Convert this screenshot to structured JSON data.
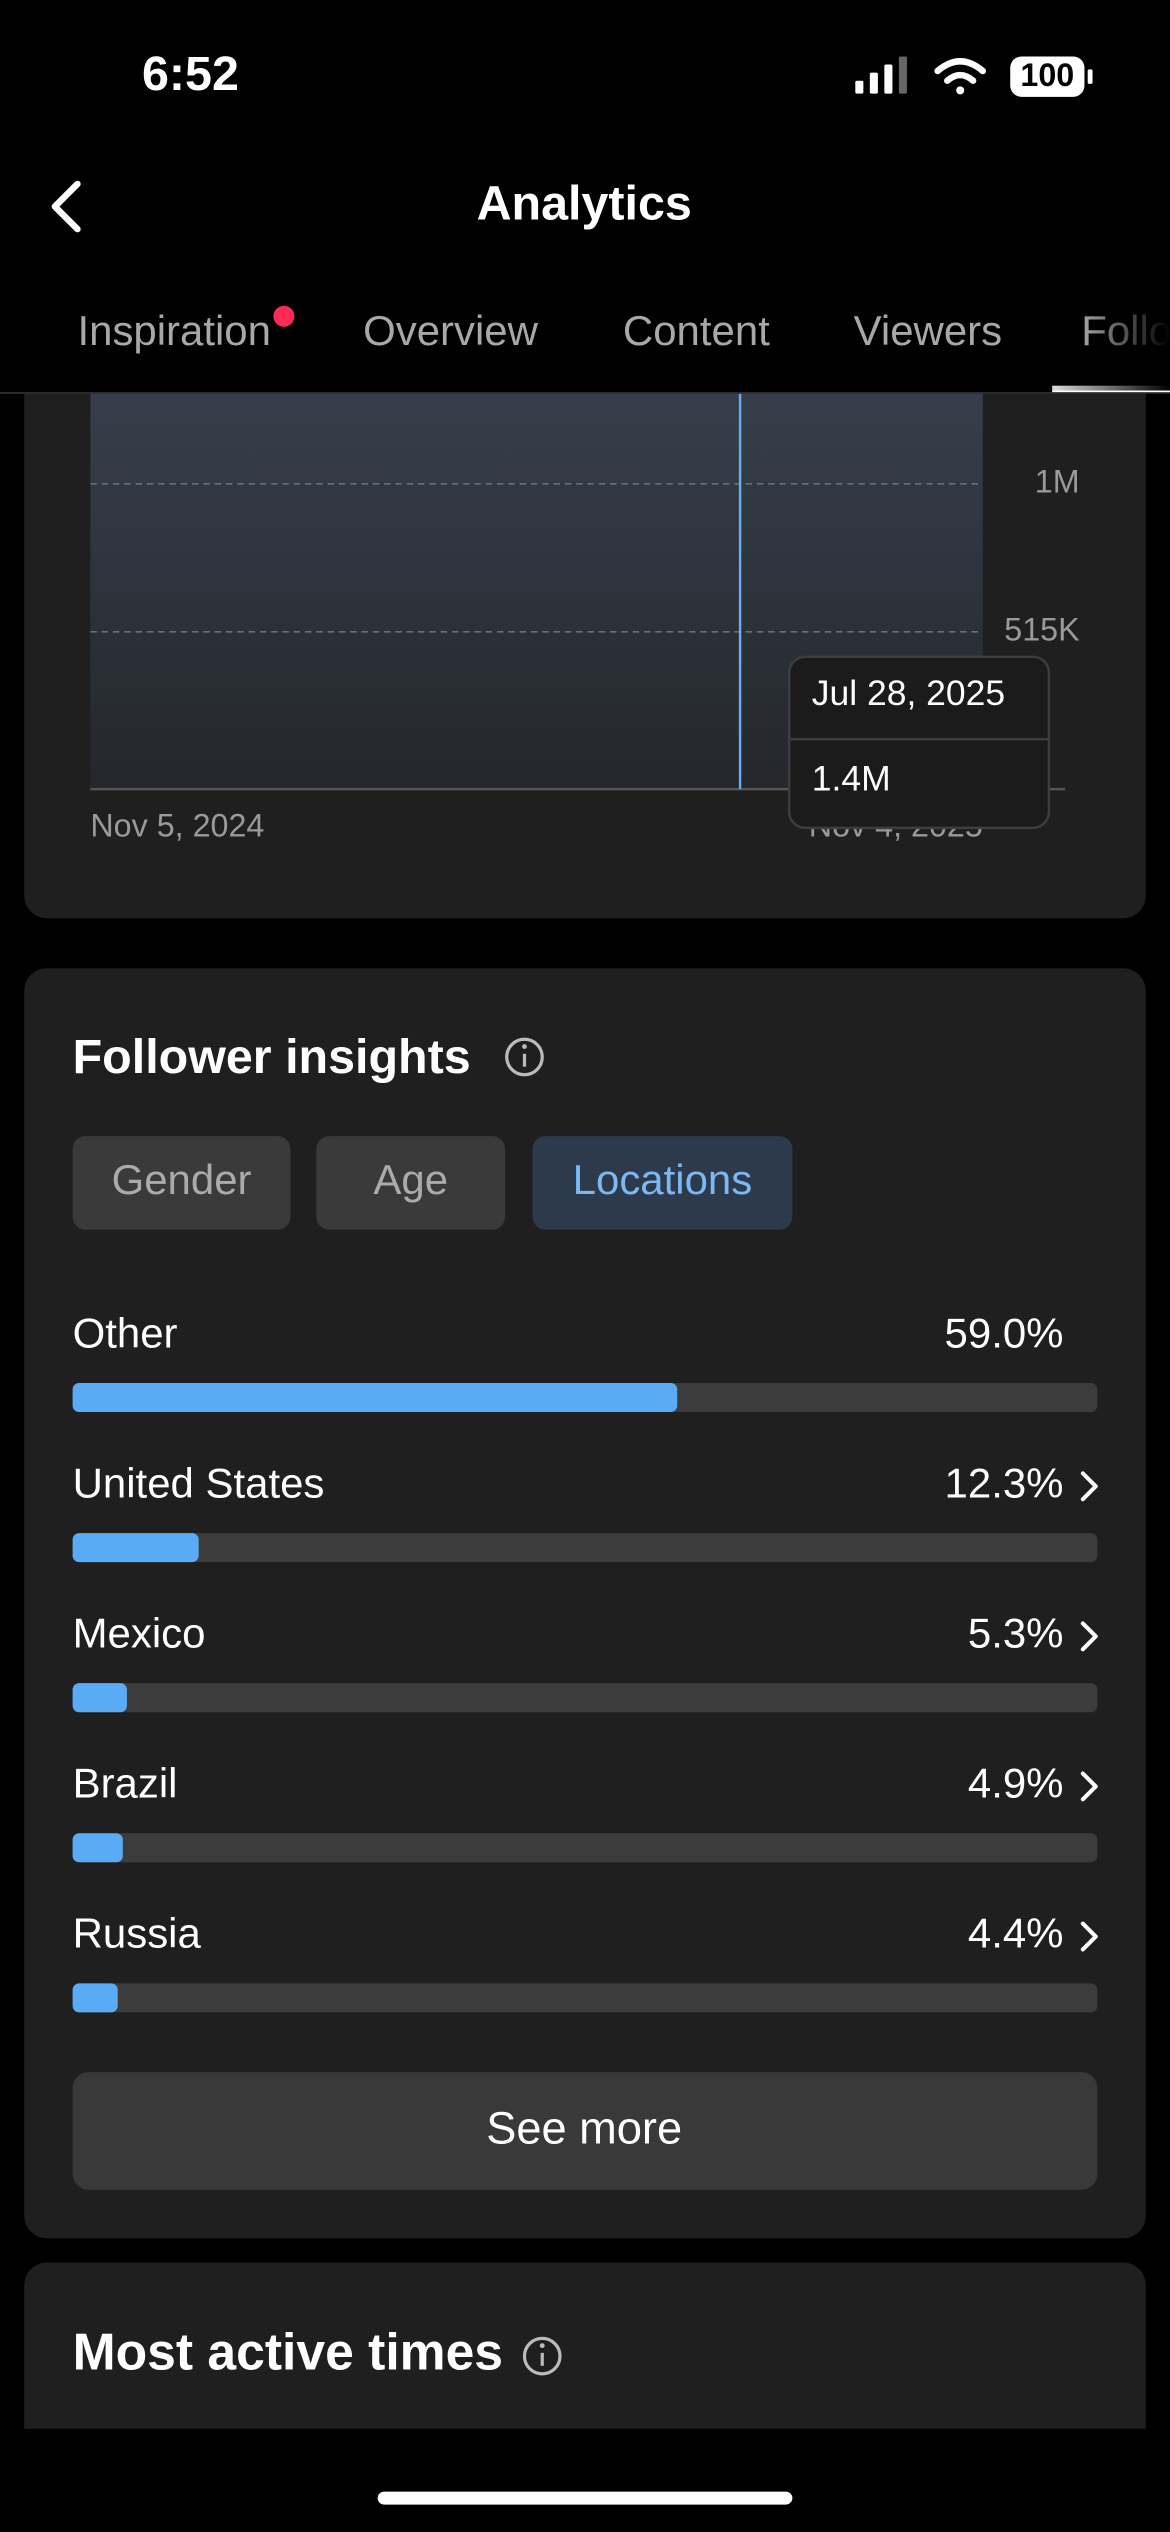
{
  "status_bar": {
    "time": "6:52",
    "battery": "100"
  },
  "header": {
    "title": "Analytics"
  },
  "tabs": {
    "items": [
      "Inspiration",
      "Overview",
      "Content",
      "Viewers",
      "Follo"
    ],
    "selected": 4,
    "badge": 0
  },
  "chart": {
    "ylim": [
      0,
      1300000
    ],
    "yticks": [
      {
        "value": 1000000,
        "label": "1M"
      },
      {
        "value": 515000,
        "label": "515K"
      }
    ],
    "x_labels": [
      "Nov 5, 2024",
      "Nov 4, 2025"
    ],
    "tooltip": {
      "date": "Jul 28, 2025",
      "value": {
        "value": 1400000,
        "label": "1.4M"
      }
    }
  },
  "follower_insights": {
    "title": "Follower insights",
    "filters": [
      "Gender",
      "Age",
      "Locations"
    ],
    "selected_filter": 2,
    "locations": [
      {
        "name": "Other",
        "percent": 59.0,
        "label": "59.0%",
        "link": false
      },
      {
        "name": "United States",
        "percent": 12.3,
        "label": "12.3%",
        "link": true
      },
      {
        "name": "Mexico",
        "percent": 5.3,
        "label": "5.3%",
        "link": true
      },
      {
        "name": "Brazil",
        "percent": 4.9,
        "label": "4.9%",
        "link": true
      },
      {
        "name": "Russia",
        "percent": 4.4,
        "label": "4.4%",
        "link": true
      }
    ],
    "see_more": "See more"
  },
  "most_active_times": {
    "title": "Most active times"
  }
}
